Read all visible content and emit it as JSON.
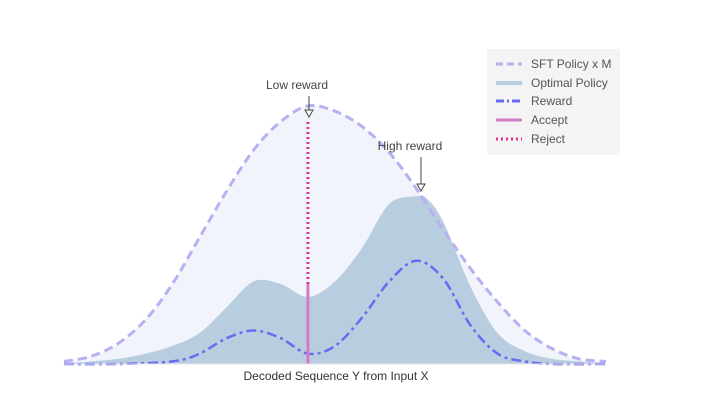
{
  "chart_data": {
    "type": "area",
    "title": "",
    "xlabel": "Decoded Sequence Y from Input X",
    "ylabel": "",
    "xlim": [
      0,
      1
    ],
    "ylim": [
      0,
      1
    ],
    "grid": false,
    "legend_position": "top-right",
    "series": [
      {
        "name": "SFT Policy x M",
        "style": "dashed",
        "color": "#b7b1f2",
        "fill": "#f2f4fb",
        "x": [
          0,
          0.05,
          0.1,
          0.15,
          0.2,
          0.25,
          0.3,
          0.35,
          0.4,
          0.45,
          0.5,
          0.55,
          0.6,
          0.65,
          0.7,
          0.75,
          0.8,
          0.85,
          0.9,
          0.95,
          1
        ],
        "values": [
          0.01,
          0.03,
          0.08,
          0.17,
          0.31,
          0.49,
          0.67,
          0.83,
          0.94,
          1.0,
          0.98,
          0.92,
          0.82,
          0.68,
          0.52,
          0.37,
          0.24,
          0.13,
          0.06,
          0.02,
          0.01
        ]
      },
      {
        "name": "Optimal Policy",
        "style": "area",
        "color": "#b8cde0",
        "fill": "#b8cde0",
        "x": [
          0,
          0.05,
          0.1,
          0.15,
          0.2,
          0.25,
          0.3,
          0.35,
          0.4,
          0.45,
          0.5,
          0.55,
          0.6,
          0.65,
          0.67,
          0.7,
          0.75,
          0.8,
          0.85,
          0.9,
          0.95,
          1
        ],
        "values": [
          0.0,
          0.01,
          0.02,
          0.04,
          0.07,
          0.12,
          0.22,
          0.32,
          0.31,
          0.26,
          0.32,
          0.45,
          0.62,
          0.65,
          0.64,
          0.55,
          0.3,
          0.12,
          0.05,
          0.02,
          0.01,
          0.0
        ]
      },
      {
        "name": "Reward",
        "style": "dashdot",
        "color": "#6a6af0",
        "x": [
          0,
          0.1,
          0.2,
          0.25,
          0.3,
          0.35,
          0.4,
          0.45,
          0.5,
          0.55,
          0.6,
          0.65,
          0.7,
          0.75,
          0.8,
          0.85,
          0.9,
          1
        ],
        "values": [
          0.0,
          0.0,
          0.01,
          0.04,
          0.1,
          0.13,
          0.1,
          0.04,
          0.07,
          0.18,
          0.32,
          0.4,
          0.33,
          0.15,
          0.04,
          0.01,
          0.0,
          0.0
        ]
      },
      {
        "name": "Accept",
        "style": "solid",
        "color": "#d47ac8",
        "x": [
          0.45,
          0.45
        ],
        "values": [
          0.0,
          0.31
        ]
      },
      {
        "name": "Reject",
        "style": "dotted",
        "color": "#e0308f",
        "x": [
          0.45,
          0.45
        ],
        "values": [
          0.31,
          0.95
        ]
      }
    ],
    "annotations": [
      {
        "text": "Low reward",
        "x": 0.45,
        "y": 0.95
      },
      {
        "text": "High reward",
        "x": 0.66,
        "y": 0.64
      }
    ]
  }
}
